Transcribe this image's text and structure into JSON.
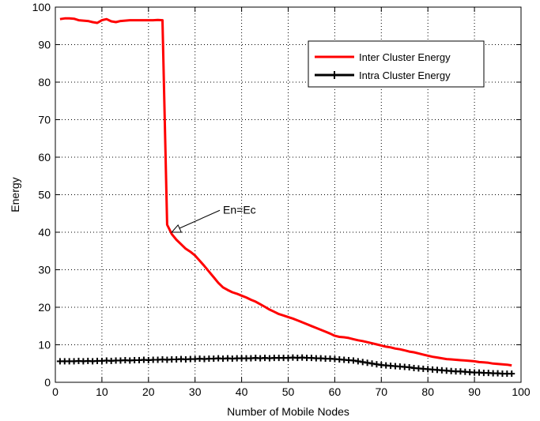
{
  "chart_data": {
    "type": "line",
    "xlabel": "Number of Mobile Nodes",
    "ylabel": "Energy",
    "xlim": [
      0,
      100
    ],
    "ylim": [
      0,
      100
    ],
    "xticks": [
      0,
      10,
      20,
      30,
      40,
      50,
      60,
      70,
      80,
      90,
      100
    ],
    "yticks": [
      0,
      10,
      20,
      30,
      40,
      50,
      60,
      70,
      80,
      90,
      100
    ],
    "grid": true,
    "legend_position": "top-right",
    "series": [
      {
        "name": "Inter Cluster Energy",
        "color": "#ff0000",
        "marker": "none",
        "x": [
          1,
          2,
          3,
          4,
          5,
          6,
          7,
          8,
          9,
          10,
          11,
          12,
          13,
          14,
          15,
          16,
          17,
          18,
          19,
          20,
          21,
          22,
          23,
          24,
          25,
          26,
          27,
          28,
          29,
          30,
          31,
          32,
          33,
          34,
          35,
          36,
          37,
          38,
          39,
          40,
          41,
          42,
          43,
          44,
          45,
          46,
          47,
          48,
          49,
          50,
          51,
          52,
          53,
          54,
          55,
          56,
          57,
          58,
          59,
          60,
          61,
          62,
          63,
          64,
          65,
          66,
          67,
          68,
          69,
          70,
          71,
          72,
          73,
          74,
          75,
          76,
          77,
          78,
          79,
          80,
          81,
          82,
          83,
          84,
          85,
          86,
          87,
          88,
          89,
          90,
          91,
          92,
          93,
          94,
          95,
          96,
          97,
          98
        ],
        "values": [
          96.8,
          97.0,
          97.0,
          96.9,
          96.5,
          96.4,
          96.3,
          96.0,
          95.8,
          96.5,
          96.8,
          96.2,
          96.0,
          96.3,
          96.4,
          96.5,
          96.5,
          96.5,
          96.5,
          96.5,
          96.5,
          96.6,
          96.5,
          42.0,
          39.5,
          38.0,
          36.8,
          35.6,
          34.8,
          33.8,
          32.4,
          31.0,
          29.5,
          28.0,
          26.5,
          25.3,
          24.6,
          24.0,
          23.6,
          23.1,
          22.6,
          22.0,
          21.5,
          20.8,
          20.1,
          19.4,
          18.8,
          18.2,
          17.8,
          17.4,
          17.0,
          16.5,
          16.0,
          15.5,
          15.0,
          14.5,
          14.0,
          13.5,
          13.0,
          12.4,
          12.1,
          12.0,
          11.8,
          11.5,
          11.2,
          11.0,
          10.7,
          10.4,
          10.1,
          9.8,
          9.5,
          9.3,
          9.0,
          8.8,
          8.5,
          8.2,
          8.0,
          7.7,
          7.4,
          7.1,
          6.8,
          6.6,
          6.4,
          6.2,
          6.1,
          6.0,
          5.9,
          5.8,
          5.7,
          5.6,
          5.4,
          5.3,
          5.2,
          5.0,
          4.9,
          4.8,
          4.7,
          4.5
        ]
      },
      {
        "name": "Intra Cluster Energy",
        "color": "#000000",
        "marker": "plus",
        "x": [
          1,
          2,
          3,
          4,
          5,
          6,
          7,
          8,
          9,
          10,
          11,
          12,
          13,
          14,
          15,
          16,
          17,
          18,
          19,
          20,
          21,
          22,
          23,
          24,
          25,
          26,
          27,
          28,
          29,
          30,
          31,
          32,
          33,
          34,
          35,
          36,
          37,
          38,
          39,
          40,
          41,
          42,
          43,
          44,
          45,
          46,
          47,
          48,
          49,
          50,
          51,
          52,
          53,
          54,
          55,
          56,
          57,
          58,
          59,
          60,
          61,
          62,
          63,
          64,
          65,
          66,
          67,
          68,
          69,
          70,
          71,
          72,
          73,
          74,
          75,
          76,
          77,
          78,
          79,
          80,
          81,
          82,
          83,
          84,
          85,
          86,
          87,
          88,
          89,
          90,
          91,
          92,
          93,
          94,
          95,
          96,
          97,
          98
        ],
        "values": [
          5.6,
          5.6,
          5.6,
          5.6,
          5.7,
          5.6,
          5.7,
          5.6,
          5.7,
          5.7,
          5.8,
          5.7,
          5.8,
          5.8,
          5.9,
          5.8,
          5.9,
          5.9,
          6.0,
          5.9,
          6.0,
          6.0,
          6.1,
          6.0,
          6.1,
          6.1,
          6.2,
          6.1,
          6.2,
          6.2,
          6.3,
          6.2,
          6.3,
          6.3,
          6.4,
          6.3,
          6.4,
          6.3,
          6.4,
          6.4,
          6.4,
          6.4,
          6.5,
          6.4,
          6.5,
          6.4,
          6.5,
          6.5,
          6.5,
          6.5,
          6.6,
          6.5,
          6.6,
          6.5,
          6.5,
          6.4,
          6.4,
          6.3,
          6.3,
          6.2,
          6.1,
          6.0,
          5.9,
          5.8,
          5.6,
          5.4,
          5.2,
          5.0,
          4.8,
          4.6,
          4.5,
          4.4,
          4.3,
          4.2,
          4.1,
          4.0,
          3.8,
          3.7,
          3.6,
          3.5,
          3.4,
          3.3,
          3.2,
          3.1,
          3.0,
          2.9,
          2.9,
          2.8,
          2.7,
          2.6,
          2.6,
          2.5,
          2.5,
          2.4,
          2.4,
          2.3,
          2.3,
          2.3
        ]
      }
    ],
    "annotations": [
      {
        "text": "En=Ec",
        "x": 25,
        "y": 40,
        "text_x": 36,
        "text_y": 45
      }
    ]
  }
}
